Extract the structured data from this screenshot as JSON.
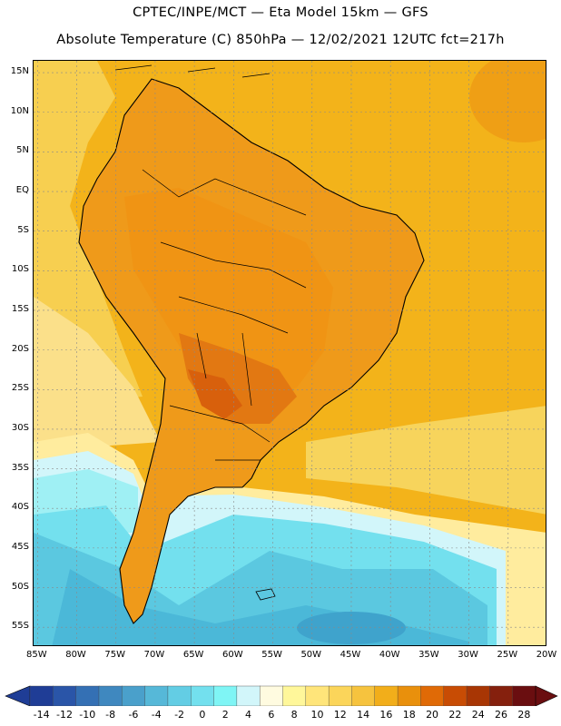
{
  "title_line1": "CPTEC/INPE/MCT  —   Eta Model 15km  —  GFS",
  "title_line2": "Absolute Temperature (C) 850hPa — 12/02/2021 12UTC fct=217h",
  "lat_labels": [
    "15N",
    "10N",
    "5N",
    "EQ",
    "5S",
    "10S",
    "15S",
    "20S",
    "25S",
    "30S",
    "35S",
    "40S",
    "45S",
    "50S",
    "55S"
  ],
  "lat_values": [
    15,
    10,
    5,
    0,
    -5,
    -10,
    -15,
    -20,
    -25,
    -30,
    -35,
    -40,
    -45,
    -50,
    -55
  ],
  "lon_labels": [
    "85W",
    "80W",
    "75W",
    "70W",
    "65W",
    "60W",
    "55W",
    "50W",
    "45W",
    "40W",
    "35W",
    "30W",
    "25W",
    "20W"
  ],
  "lon_values": [
    -85,
    -80,
    -75,
    -70,
    -65,
    -60,
    -55,
    -50,
    -45,
    -40,
    -35,
    -30,
    -25,
    -20
  ],
  "map_extent": {
    "lon_min": -85.5,
    "lon_max": -20,
    "lat_min": -57.5,
    "lat_max": 16.5
  },
  "colorbar": {
    "labels": [
      "-14",
      "-12",
      "-10",
      "-8",
      "-6",
      "-4",
      "-2",
      "0",
      "2",
      "4",
      "6",
      "8",
      "10",
      "12",
      "14",
      "16",
      "18",
      "20",
      "22",
      "24",
      "26",
      "28"
    ],
    "colors": [
      "#1f3d96",
      "#2a55a8",
      "#3470b4",
      "#3f88bf",
      "#4aa0cb",
      "#56b8d8",
      "#63cde4",
      "#73e0ee",
      "#7ff5f5",
      "#d2f6fa",
      "#fffbe0",
      "#fff79a",
      "#ffe57a",
      "#fbd55a",
      "#f6c33e",
      "#f2ae1a",
      "#e9900c",
      "#e06a06",
      "#c84c04",
      "#a83604",
      "#85200d",
      "#6a0e10"
    ],
    "low_end_color": "#1f3d96",
    "high_end_color": "#6a0e10"
  },
  "colors": {
    "ocean_warm": "#f3b31a",
    "ocean_mid": "#f7d45c",
    "ocean_cool": "#fbe58c",
    "cold_ocean": "#5bc8e0",
    "colder_ocean": "#4bb8d8",
    "land_warm": "#ef9a1a",
    "land_hot": "#de6a10",
    "coast": "#000000"
  }
}
